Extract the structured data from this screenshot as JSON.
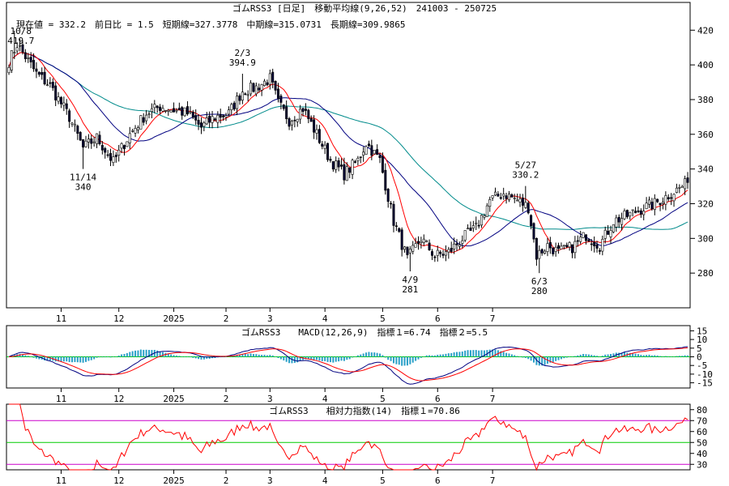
{
  "chart_data": [
    {
      "type": "candlestick",
      "title": "現在値 = 332.2　前日比 = 1.5　短期線=327.3778　中期線=315.0731　長期線=309.9865",
      "header": "ゴムRSS3 [日足]　移動平均線(9,26,52)　241003 - 250725",
      "y_ticks": [
        280,
        300,
        320,
        340,
        360,
        380,
        400,
        420
      ],
      "ylim": [
        260,
        436
      ],
      "x_ticks": [
        "11",
        "12",
        "2025",
        "2",
        "3",
        "4",
        "5",
        "6",
        "7"
      ],
      "annotations": [
        {
          "label": "10/8",
          "value": "419.7"
        },
        {
          "label": "11/14",
          "value": "340"
        },
        {
          "label": "2/3",
          "value": "394.9"
        },
        {
          "label": "4/9",
          "value": "281"
        },
        {
          "label": "5/27",
          "value": "330.2"
        },
        {
          "label": "6/3",
          "value": "280"
        }
      ],
      "close_anchors": [
        [
          0,
          402
        ],
        [
          3,
          412
        ],
        [
          10,
          395
        ],
        [
          15,
          388
        ],
        [
          22,
          370
        ],
        [
          27,
          352
        ],
        [
          32,
          358
        ],
        [
          38,
          344
        ],
        [
          44,
          360
        ],
        [
          50,
          372
        ],
        [
          55,
          376
        ],
        [
          60,
          374
        ],
        [
          65,
          372
        ],
        [
          70,
          364
        ],
        [
          75,
          370
        ],
        [
          80,
          372
        ],
        [
          85,
          385
        ],
        [
          90,
          387
        ],
        [
          95,
          392
        ],
        [
          98,
          378
        ],
        [
          102,
          368
        ],
        [
          107,
          375
        ],
        [
          112,
          360
        ],
        [
          117,
          345
        ],
        [
          122,
          337
        ],
        [
          127,
          345
        ],
        [
          130,
          355
        ],
        [
          135,
          345
        ],
        [
          140,
          310
        ],
        [
          145,
          288
        ],
        [
          150,
          300
        ],
        [
          155,
          290
        ],
        [
          160,
          292
        ],
        [
          165,
          300
        ],
        [
          170,
          306
        ],
        [
          175,
          322
        ],
        [
          180,
          326
        ],
        [
          185,
          322
        ],
        [
          189,
          318
        ],
        [
          192,
          290
        ],
        [
          196,
          296
        ],
        [
          200,
          292
        ],
        [
          205,
          295
        ],
        [
          210,
          302
        ],
        [
          215,
          296
        ],
        [
          220,
          310
        ],
        [
          225,
          313
        ],
        [
          230,
          317
        ],
        [
          235,
          320
        ],
        [
          240,
          325
        ],
        [
          245,
          330
        ],
        [
          247,
          332
        ]
      ],
      "series": [
        {
          "name": "短期線",
          "color": "#ff0000"
        },
        {
          "name": "中期線",
          "color": "#000080"
        },
        {
          "name": "長期線",
          "color": "#008b8b"
        }
      ]
    },
    {
      "type": "line",
      "title": "ゴムRSS3　　MACD(12,26,9)　指標１=6.74　指標２=5.5",
      "y_ticks": [
        15,
        10,
        5,
        0,
        -5,
        -10,
        -15
      ],
      "ylim": [
        -18,
        18
      ],
      "x_ticks": [
        "11",
        "12",
        "2025",
        "2",
        "3",
        "4",
        "5",
        "6",
        "7"
      ]
    },
    {
      "type": "line",
      "title": "ゴムRSS3　　相対力指数(14)　指標１=70.86",
      "y_ticks": [
        80,
        70,
        60,
        50,
        40,
        30
      ],
      "ylim": [
        25,
        85
      ],
      "reference_lines": [
        70,
        50,
        30
      ],
      "x_ticks": [
        "11",
        "12",
        "2025",
        "2",
        "3",
        "4",
        "5",
        "6",
        "7"
      ]
    }
  ]
}
